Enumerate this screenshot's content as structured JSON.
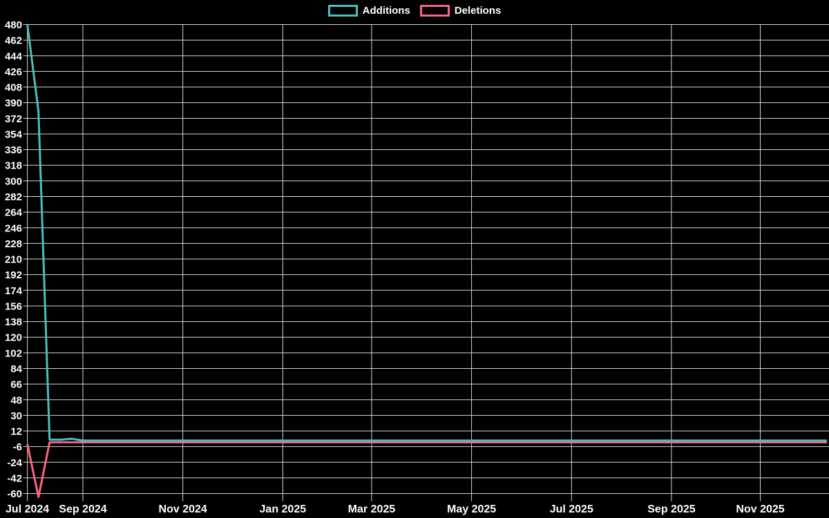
{
  "chart_data": {
    "type": "line",
    "title": "",
    "legend_position": "top-center",
    "grid": true,
    "colors": {
      "background": "#000000",
      "grid": "#d9d9d9",
      "text": "#ffffff",
      "additions": "#4bc0c0",
      "deletions": "#ff6384"
    },
    "x_axis": {
      "kind": "weekly-category",
      "num_points": 73,
      "first_week": "2024-07-28",
      "last_week": "2025-12-14",
      "tick_indices": [
        0,
        5,
        14,
        23,
        31,
        40,
        49,
        58,
        66
      ],
      "tick_labels": [
        "Jul 2024",
        "Sep 2024",
        "Nov 2024",
        "Jan 2025",
        "Mar 2025",
        "May 2025",
        "Jul 2025",
        "Sep 2025",
        "Nov 2025"
      ]
    },
    "y_axis": {
      "min": -64,
      "max": 480,
      "tick_step": 18,
      "tick_labels": [
        "480",
        "462",
        "444",
        "426",
        "408",
        "390",
        "372",
        "354",
        "336",
        "318",
        "300",
        "282",
        "264",
        "246",
        "228",
        "210",
        "192",
        "174",
        "156",
        "138",
        "120",
        "102",
        "84",
        "66",
        "48",
        "30",
        "12",
        "-6",
        "-24",
        "-42",
        "-60"
      ]
    },
    "series": [
      {
        "name": "Additions",
        "color": "#4bc0c0",
        "values": [
          480,
          380,
          2,
          2,
          3,
          1,
          1,
          1,
          1,
          1,
          1,
          1,
          1,
          1,
          1,
          1,
          1,
          1,
          1,
          1,
          1,
          1,
          1,
          1,
          1,
          1,
          1,
          1,
          1,
          1,
          1,
          1,
          1,
          1,
          1,
          1,
          1,
          1,
          1,
          1,
          1,
          1,
          1,
          1,
          1,
          1,
          1,
          1,
          1,
          1,
          1,
          1,
          1,
          1,
          1,
          1,
          1,
          1,
          1,
          1,
          1,
          1,
          1,
          1,
          1,
          1,
          1,
          1,
          1,
          1,
          1,
          1,
          1
        ]
      },
      {
        "name": "Deletions",
        "color": "#ff6384",
        "values": [
          -3,
          -64,
          -1,
          -1,
          -1,
          -1,
          -1,
          -1,
          -1,
          -1,
          -1,
          -1,
          -1,
          -1,
          -1,
          -1,
          -1,
          -1,
          -1,
          -1,
          -1,
          -1,
          -1,
          -1,
          -1,
          -1,
          -1,
          -1,
          -1,
          -1,
          -1,
          -1,
          -1,
          -1,
          -1,
          -1,
          -1,
          -1,
          -1,
          -1,
          -1,
          -1,
          -1,
          -1,
          -1,
          -1,
          -1,
          -1,
          -1,
          -1,
          -1,
          -1,
          -1,
          -1,
          -1,
          -1,
          -1,
          -1,
          -1,
          -1,
          -1,
          -1,
          -1,
          -1,
          -1,
          -1,
          -1,
          -1,
          -1,
          -1,
          -1,
          -1,
          -1
        ]
      }
    ]
  }
}
